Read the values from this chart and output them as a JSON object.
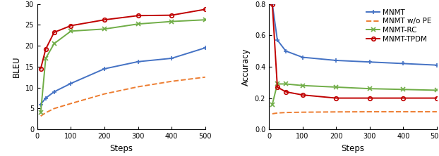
{
  "steps": [
    10,
    25,
    50,
    100,
    200,
    300,
    400,
    500
  ],
  "bleu": {
    "MNMT": [
      6.0,
      7.5,
      9.0,
      11.0,
      14.5,
      16.2,
      17.0,
      19.5
    ],
    "MNMT_woPE": [
      3.2,
      4.0,
      5.0,
      6.2,
      8.5,
      10.2,
      11.5,
      12.5
    ],
    "MNMT_RC": [
      4.0,
      17.0,
      20.5,
      23.5,
      24.0,
      25.2,
      25.8,
      26.2
    ],
    "MNMT_TPDM": [
      14.5,
      19.2,
      23.2,
      24.8,
      26.2,
      27.2,
      27.3,
      28.7
    ]
  },
  "accuracy": {
    "MNMT": [
      0.8,
      0.57,
      0.5,
      0.46,
      0.44,
      0.43,
      0.42,
      0.41
    ],
    "MNMT_woPE": [
      0.1,
      0.105,
      0.108,
      0.11,
      0.112,
      0.113,
      0.113,
      0.113
    ],
    "MNMT_RC": [
      0.16,
      0.29,
      0.29,
      0.28,
      0.27,
      0.26,
      0.255,
      0.25
    ],
    "MNMT_TPDM": [
      0.8,
      0.27,
      0.24,
      0.22,
      0.2,
      0.2,
      0.2,
      0.2
    ]
  },
  "colors": {
    "MNMT": "#4472c4",
    "MNMT_woPE": "#ed7d31",
    "MNMT_RC": "#70ad47",
    "MNMT_TPDM": "#c00000"
  },
  "labels": {
    "MNMT": "MNMT",
    "MNMT_woPE": "MNMT w/o PE",
    "MNMT_RC": "MNMT-RC",
    "MNMT_TPDM": "MNMT-TPDM"
  },
  "bleu_ylim": [
    0,
    30
  ],
  "acc_ylim": [
    0.0,
    0.8
  ],
  "xlim": [
    0,
    500
  ],
  "xlabel": "Steps",
  "bleu_ylabel": "BLEU",
  "acc_ylabel": "Accuracy",
  "tick_fontsize": 7,
  "label_fontsize": 8.5,
  "legend_fontsize": 7.5
}
